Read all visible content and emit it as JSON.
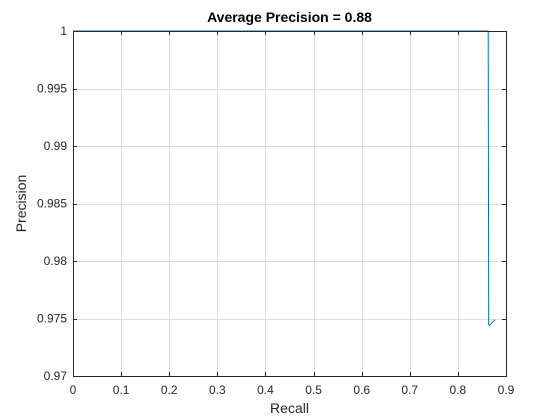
{
  "chart_data": {
    "type": "line",
    "title": "Average Precision = 0.88",
    "xlabel": "Recall",
    "ylabel": "Precision",
    "xlim": [
      0,
      0.9
    ],
    "ylim": [
      0.97,
      1
    ],
    "xticks": [
      "0",
      "0.1",
      "0.2",
      "0.3",
      "0.4",
      "0.5",
      "0.6",
      "0.7",
      "0.8",
      "0.9"
    ],
    "yticks": [
      "0.97",
      "0.975",
      "0.98",
      "0.985",
      "0.99",
      "0.995",
      "1"
    ],
    "grid": true,
    "series": [
      {
        "color": "#0072bd",
        "x": [
          0,
          0.003,
          0.863,
          0.864,
          0.866,
          0.877
        ],
        "y": [
          1,
          1,
          1,
          0.97445,
          0.9744,
          0.9749
        ]
      }
    ]
  }
}
